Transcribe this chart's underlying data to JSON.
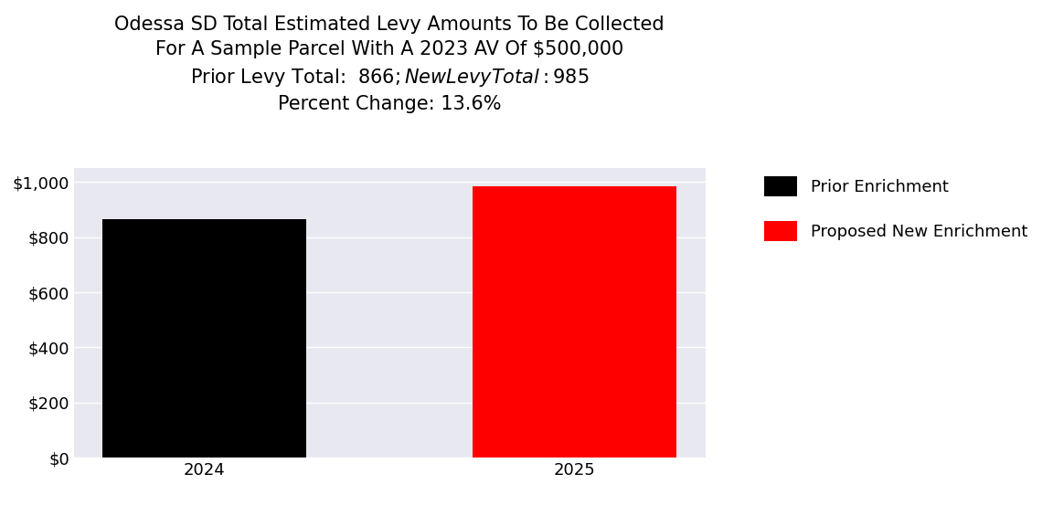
{
  "title_line1": "Odessa SD Total Estimated Levy Amounts To Be Collected",
  "title_line2": "For A Sample Parcel With A 2023 AV Of $500,000",
  "title_line3": "Prior Levy Total:  $866; New Levy Total: $985",
  "title_line4": "Percent Change: 13.6%",
  "categories": [
    "2024",
    "2025"
  ],
  "values": [
    866,
    985
  ],
  "bar_colors": [
    "#000000",
    "#ff0000"
  ],
  "legend_labels": [
    "Prior Enrichment",
    "Proposed New Enrichment"
  ],
  "legend_colors": [
    "#000000",
    "#ff0000"
  ],
  "ylim": [
    0,
    1050
  ],
  "yticks": [
    0,
    200,
    400,
    600,
    800,
    1000
  ],
  "ytick_labels": [
    "$0",
    "$200",
    "$400",
    "$600",
    "$800",
    "$1,000"
  ],
  "background_color": "#e8e8f0",
  "figure_background": "#ffffff",
  "title_fontsize": 15,
  "tick_fontsize": 13,
  "legend_fontsize": 13
}
